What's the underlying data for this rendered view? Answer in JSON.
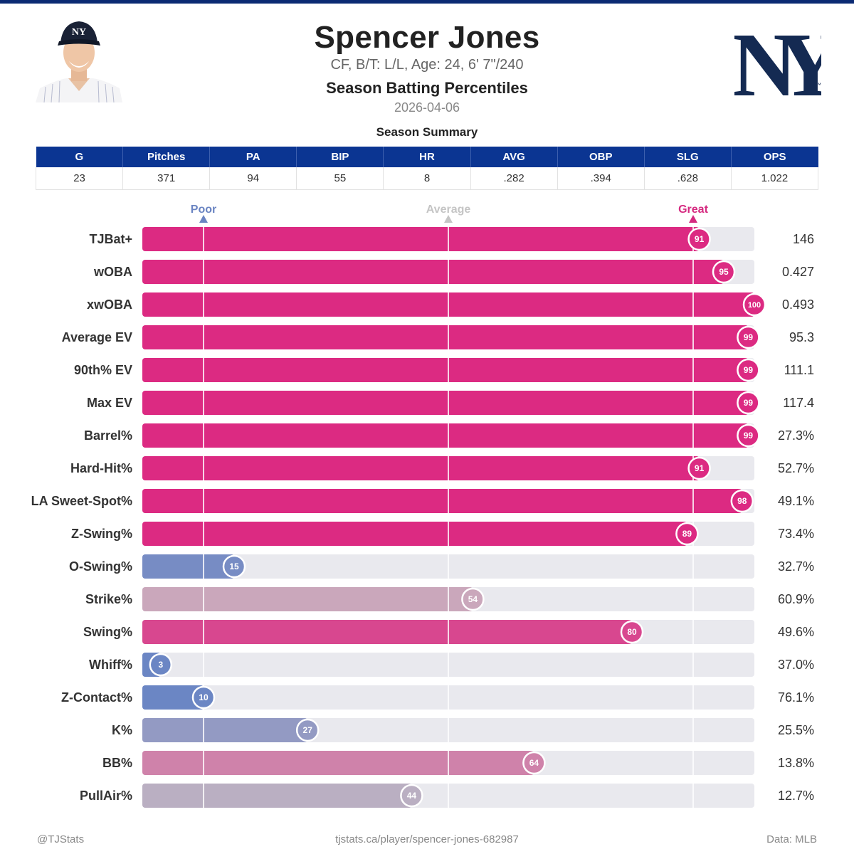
{
  "header": {
    "player_name": "Spencer Jones",
    "bio": "CF, B/T: L/L, Age: 24, 6' 7\"/240",
    "title": "Season Batting Percentiles",
    "date": "2026-04-06",
    "team_logo_text": "NY"
  },
  "summary": {
    "title": "Season Summary",
    "columns": [
      "G",
      "Pitches",
      "PA",
      "BIP",
      "HR",
      "AVG",
      "OBP",
      "SLG",
      "OPS"
    ],
    "values": [
      "23",
      "371",
      "94",
      "55",
      "8",
      ".282",
      ".394",
      ".628",
      "1.022"
    ]
  },
  "colors": {
    "brand_navy": "#0b3592",
    "great": "#dc2a82",
    "poor": "#6b86c4",
    "average": "#c8b6c2",
    "track": "#e9e9ee"
  },
  "chart_data": {
    "type": "bar",
    "orientation": "horizontal",
    "reference_labels": [
      {
        "label": "Poor",
        "value": 10,
        "color": "#6a84c2"
      },
      {
        "label": "Average",
        "value": 50,
        "color": "#c5c5c5"
      },
      {
        "label": "Great",
        "value": 90,
        "color": "#d52a80"
      }
    ],
    "xlim": [
      0,
      100
    ],
    "categories": [
      "TJBat+",
      "wOBA",
      "xwOBA",
      "Average EV",
      "90th% EV",
      "Max EV",
      "Barrel%",
      "Hard-Hit%",
      "LA Sweet-Spot%",
      "Z-Swing%",
      "O-Swing%",
      "Strike%",
      "Swing%",
      "Whiff%",
      "Z-Contact%",
      "K%",
      "BB%",
      "PullAir%"
    ],
    "percentiles": [
      91,
      95,
      100,
      99,
      99,
      99,
      99,
      91,
      98,
      89,
      15,
      54,
      80,
      3,
      10,
      27,
      64,
      44
    ],
    "stat_values": [
      "146",
      "0.427",
      "0.493",
      "95.3",
      "111.1",
      "117.4",
      "27.3%",
      "52.7%",
      "49.1%",
      "73.4%",
      "32.7%",
      "60.9%",
      "49.6%",
      "37.0%",
      "76.1%",
      "25.5%",
      "13.8%",
      "12.7%"
    ]
  },
  "footer": {
    "left": "@TJStats",
    "center": "tjstats.ca/player/spencer-jones-682987",
    "right": "Data: MLB"
  }
}
